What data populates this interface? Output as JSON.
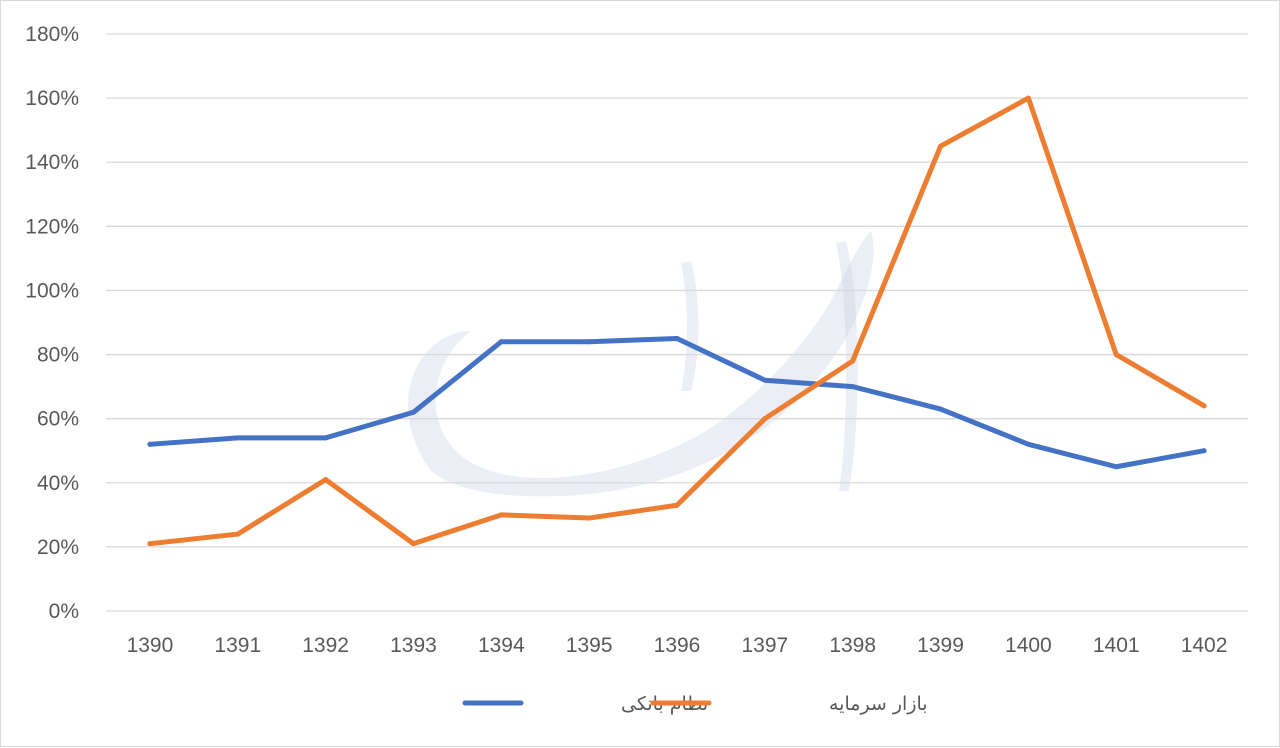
{
  "chart_data": {
    "type": "line",
    "categories": [
      "1390",
      "1391",
      "1392",
      "1393",
      "1394",
      "1395",
      "1396",
      "1397",
      "1398",
      "1399",
      "1400",
      "1401",
      "1402"
    ],
    "series": [
      {
        "name": "نظام بانکی",
        "color": "#4472c4",
        "values": [
          52,
          54,
          54,
          62,
          84,
          84,
          85,
          72,
          70,
          63,
          52,
          45,
          50
        ]
      },
      {
        "name": "بازار سرمایه",
        "color": "#ed7d31",
        "values": [
          21,
          24,
          41,
          21,
          30,
          29,
          33,
          60,
          78,
          145,
          160,
          80,
          64
        ]
      }
    ],
    "y_ticks": [
      "0%",
      "20%",
      "40%",
      "60%",
      "80%",
      "100%",
      "120%",
      "140%",
      "160%",
      "180%"
    ],
    "ylim": [
      0,
      180
    ],
    "grid": true,
    "legend_position": "bottom",
    "title": "",
    "xlabel": "",
    "ylabel": ""
  }
}
